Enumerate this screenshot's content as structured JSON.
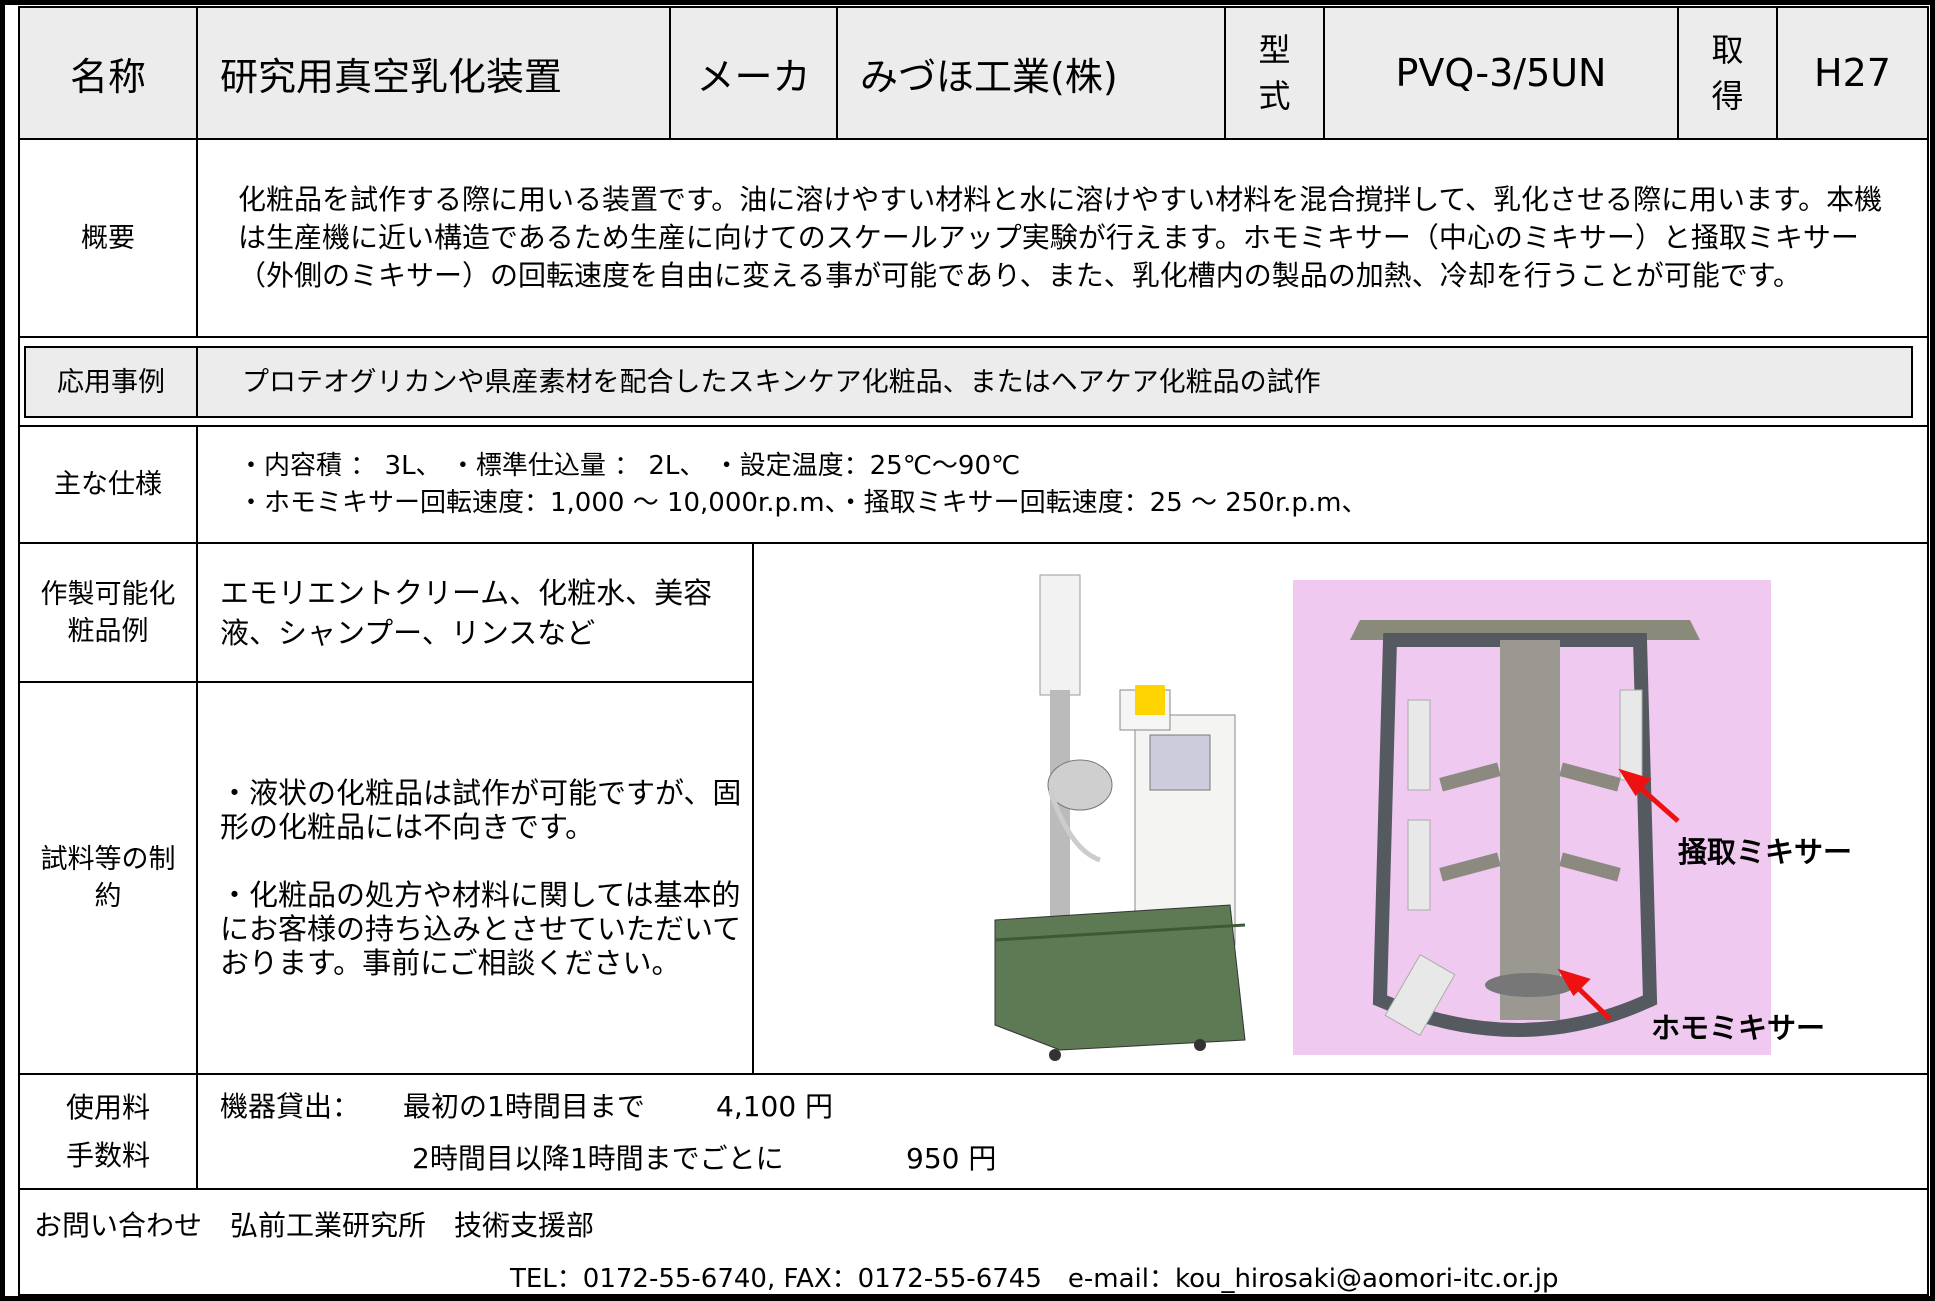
{
  "header": {
    "name_label": "名称",
    "name": "研究用真空乳化装置",
    "maker_label": "メーカ",
    "maker": "みづほ工業(株)",
    "model_label": "型式",
    "model": "PVQ-3/5UN",
    "acquired_label": "取得",
    "acquired": "H27"
  },
  "overview": {
    "label": "概要",
    "text": "化粧品を試作する際に用いる装置です。油に溶けやすい材料と水に溶けやすい材料を混合撹拌して、乳化させる際に用います。本機は生産機に近い構造であるため生産に向けてのスケールアップ実験が行えます。ホモミキサー（中心のミキサー）と掻取ミキサー（外側のミキサー）の回転速度を自由に変える事が可能であり、また、乳化槽内の製品の加熱、冷却を行うことが可能です。"
  },
  "application": {
    "label": "応用事例",
    "text": "プロテオグリカンや県産素材を配合したスキンケア化粧品、またはヘアケア化粧品の試作"
  },
  "specs": {
    "label": "主な仕様",
    "lines": [
      "・内容積 ： 3L、 ・標準仕込量 ： 2L、 ・設定温度：25℃～90℃",
      "・ホモミキサー回転速度：1,000 ～ 10,000r.p.m、・掻取ミキサー回転速度：25 ～ 250r.p.m、"
    ]
  },
  "products": {
    "label": "作製可能化粧品例",
    "text": "エモリエントクリーム、化粧水、美容液、シャンプー、リンスなど"
  },
  "constraints": {
    "label": "試料等の制約",
    "lines": [
      "・液状の化粧品は試作が可能ですが、固形の化粧品には不向きです。",
      "・化粧品の処方や材料に関しては基本的にお客様の持ち込みとさせていただいております。事前にご相談ください。"
    ]
  },
  "images": {
    "callouts": [
      "掻取ミキサー",
      "ホモミキサー"
    ]
  },
  "fees": {
    "label": "使用料手数料",
    "prefix": "機器貸出：",
    "items": [
      {
        "text": "最初の1時間目まで",
        "price": "4,100 円"
      },
      {
        "text": "2時間目以降1時間までごとに",
        "price": "950 円"
      }
    ]
  },
  "contact": {
    "title": "お問い合わせ　弘前工業研究所　技術支援部",
    "details": "TEL：0172-55-6740, FAX：0172-55-6745　e-mail：kou_hirosaki@aomori-itc.or.jp"
  }
}
